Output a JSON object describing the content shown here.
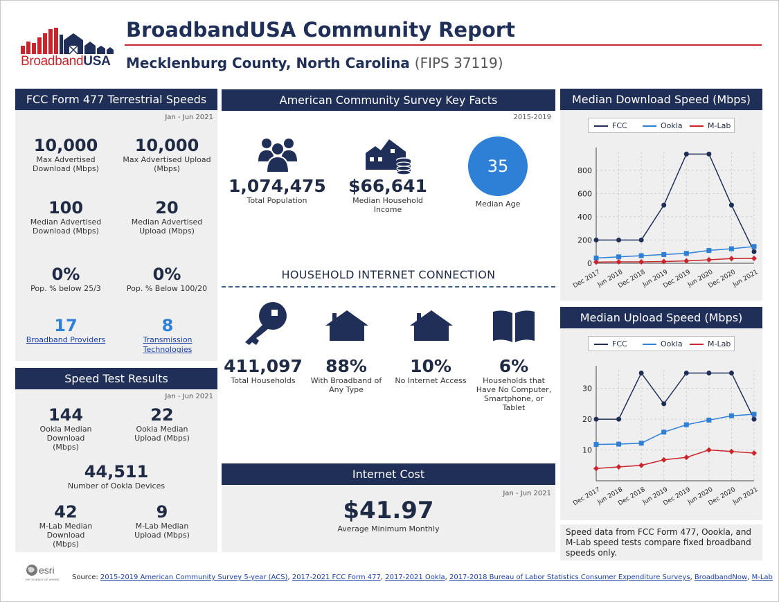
{
  "header": {
    "logo_text_broadband": "Broadband",
    "logo_text_usa": "USA",
    "title": "BroadbandUSA Community Report",
    "county": "Mecklenburg County, North Carolina",
    "fips": "(FIPS 37119)"
  },
  "fcc": {
    "heading": "FCC Form 477 Terrestrial Speeds",
    "date": "Jan - Jun 2021",
    "max_down_val": "10,000",
    "max_down_lbl": "Max Advertised Download (Mbps)",
    "max_up_val": "10,000",
    "max_up_lbl": "Max Advertised Upload (Mbps)",
    "med_down_val": "100",
    "med_down_lbl": "Median Advertised Download (Mbps)",
    "med_up_val": "20",
    "med_up_lbl": "Median Advertised Upload (Mbps)",
    "pct25_val": "0%",
    "pct25_lbl": "Pop. % below 25/3",
    "pct100_val": "0%",
    "pct100_lbl": "Pop. % Below 100/20",
    "providers_val": "17",
    "providers_lbl": "Broadband Providers",
    "tech_val": "8",
    "tech_lbl": "Transmission Technologies"
  },
  "speedtest": {
    "heading": "Speed Test Results",
    "date": "Jan - Jun 2021",
    "ookla_down_val": "144",
    "ookla_down_lbl": "Ookla Median Download (Mbps)",
    "ookla_up_val": "22",
    "ookla_up_lbl": "Ookla Median Upload (Mbps)",
    "devices_val": "44,511",
    "devices_lbl": "Number of Ookla Devices",
    "mlab_down_val": "42",
    "mlab_down_lbl": "M-Lab Median Download (Mbps)",
    "mlab_up_val": "9",
    "mlab_up_lbl": "M-Lab Median Upload (Mbps)"
  },
  "acs": {
    "heading": "American Community Survey Key Facts",
    "date": "2015-2019",
    "population_val": "1,074,475",
    "population_lbl": "Total Population",
    "income_val": "$66,641",
    "income_lbl": "Median Household Income",
    "age_val": "35",
    "age_lbl": "Median Age"
  },
  "household": {
    "heading": "HOUSEHOLD INTERNET CONNECTION",
    "total_val": "411,097",
    "total_lbl": "Total Households",
    "broadband_val": "88%",
    "broadband_lbl": "With Broadband of Any Type",
    "noaccess_val": "10%",
    "noaccess_lbl": "No Internet Access",
    "nocomputer_val": "6%",
    "nocomputer_lbl": "Households that Have No Computer, Smartphone, or Tablet"
  },
  "cost": {
    "heading": "Internet Cost",
    "date": "Jan - Jun 2021",
    "value": "$41.97",
    "label": "Average Minimum Monthly"
  },
  "note": "Speed data from FCC Form 477, Oookla, and M-Lab speed tests compare fixed broadband speeds only.",
  "footer": {
    "source_label": "Source:",
    "links": [
      "2015-2019 American Community Survey 5-year (ACS)",
      "2017-2021 FCC Form 477",
      "2017-2021 Ookla",
      "2017-2018 Bureau of Labor Statistics Consumer Expenditure Surveys",
      "BroadbandNow",
      "M-Lab"
    ]
  },
  "colors": {
    "navy": "#1f2f57",
    "red": "#c8262c",
    "blue": "#2e7fd6",
    "fcc": "#1f2f57",
    "ookla": "#2e7fd6",
    "mlab": "#c8262c"
  },
  "chart_data": [
    {
      "type": "line",
      "title": "Median Download Speed (Mbps)",
      "categories": [
        "Dec 2017",
        "Jun 2018",
        "Dec 2018",
        "Jun 2019",
        "Dec 2019",
        "Jun 2020",
        "Dec 2020",
        "Jun 2021"
      ],
      "series": [
        {
          "name": "FCC",
          "values": [
            200,
            200,
            200,
            500,
            940,
            940,
            500,
            100
          ]
        },
        {
          "name": "Ookla",
          "values": [
            45,
            55,
            65,
            75,
            85,
            110,
            125,
            144
          ]
        },
        {
          "name": "M-Lab",
          "values": [
            10,
            12,
            12,
            15,
            20,
            30,
            40,
            42
          ]
        }
      ],
      "yticks": [
        0,
        200,
        400,
        600,
        800
      ],
      "ylim": [
        0,
        960
      ],
      "grid": true,
      "legend": "top"
    },
    {
      "type": "line",
      "title": "Median Upload Speed (Mbps)",
      "categories": [
        "Dec 2017",
        "Jun 2018",
        "Dec 2018",
        "Jun 2019",
        "Dec 2019",
        "Jun 2020",
        "Dec 2020",
        "Jun 2021"
      ],
      "series": [
        {
          "name": "FCC",
          "values": [
            20,
            20,
            35,
            25,
            35,
            35,
            35,
            20
          ]
        },
        {
          "name": "Ookla",
          "values": [
            11.8,
            11.9,
            12.2,
            15.8,
            18.2,
            19.7,
            21.1,
            21.6
          ]
        },
        {
          "name": "M-Lab",
          "values": [
            4,
            4.5,
            5,
            6.8,
            7.6,
            10,
            9.5,
            9
          ]
        }
      ],
      "yticks": [
        10,
        20,
        30
      ],
      "ylim": [
        0,
        36
      ],
      "grid": true,
      "legend": "top"
    }
  ]
}
